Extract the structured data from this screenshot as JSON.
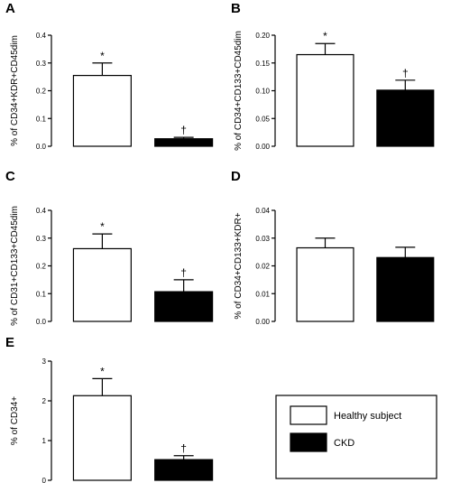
{
  "legend": {
    "entries": [
      {
        "label": "Healthy subject",
        "color": "#ffffff"
      },
      {
        "label": "CKD",
        "color": "#000000"
      }
    ]
  },
  "chart_data": [
    {
      "type": "bar",
      "panel": "A",
      "ylabel": "% of CD34+KDR+CD45dim",
      "ylim": [
        0,
        0.4
      ],
      "yticks": [
        "0.0",
        "0.1",
        "0.2",
        "0.3",
        "0.4"
      ],
      "categories": [
        "Healthy subject",
        "CKD"
      ],
      "values": [
        0.255,
        0.027
      ],
      "errors": [
        0.045,
        0.005
      ],
      "markers": [
        "*",
        "†"
      ],
      "colors": [
        "#ffffff",
        "#000000"
      ]
    },
    {
      "type": "bar",
      "panel": "B",
      "ylabel": "% of CD34+CD133+CD45dim",
      "ylim": [
        0,
        0.2
      ],
      "yticks": [
        "0.00",
        "0.05",
        "0.10",
        "0.15",
        "0.20"
      ],
      "categories": [
        "Healthy subject",
        "CKD"
      ],
      "values": [
        0.165,
        0.101
      ],
      "errors": [
        0.02,
        0.018
      ],
      "markers": [
        "*",
        "†"
      ],
      "colors": [
        "#ffffff",
        "#000000"
      ]
    },
    {
      "type": "bar",
      "panel": "C",
      "ylabel": "% of CD31+CD133+CD45dim",
      "ylim": [
        0,
        0.4
      ],
      "yticks": [
        "0.0",
        "0.1",
        "0.2",
        "0.3",
        "0.4"
      ],
      "categories": [
        "Healthy subject",
        "CKD"
      ],
      "values": [
        0.262,
        0.107
      ],
      "errors": [
        0.053,
        0.043
      ],
      "markers": [
        "*",
        "†"
      ],
      "colors": [
        "#ffffff",
        "#000000"
      ]
    },
    {
      "type": "bar",
      "panel": "D",
      "ylabel": "% of CD34+CD133+KDR+",
      "ylim": [
        0,
        0.04
      ],
      "yticks": [
        "0.00",
        "0.01",
        "0.02",
        "0.03",
        "0.04"
      ],
      "categories": [
        "Healthy subject",
        "CKD"
      ],
      "values": [
        0.0265,
        0.023
      ],
      "errors": [
        0.0035,
        0.0037
      ],
      "markers": [
        "",
        ""
      ],
      "colors": [
        "#ffffff",
        "#000000"
      ]
    },
    {
      "type": "bar",
      "panel": "E",
      "ylabel": "% of CD34+",
      "ylim": [
        0,
        3
      ],
      "yticks": [
        "0",
        "1",
        "2",
        "3"
      ],
      "categories": [
        "Healthy subject",
        "CKD"
      ],
      "values": [
        2.13,
        0.52
      ],
      "errors": [
        0.43,
        0.1
      ],
      "markers": [
        "*",
        "†"
      ],
      "colors": [
        "#ffffff",
        "#000000"
      ]
    }
  ]
}
